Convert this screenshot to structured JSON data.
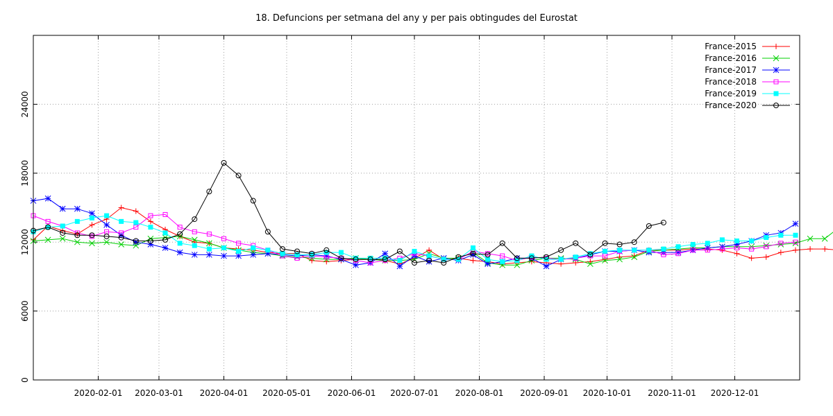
{
  "chart_data": {
    "type": "line",
    "title": "18. Defuncions per setmana del any y per pais obtingudes del Eurostat",
    "xlabel": "",
    "ylabel": "",
    "ylim": [
      0,
      30000
    ],
    "xlim": [
      "2020-01-01",
      "2021-01-01"
    ],
    "yticks": [
      0,
      6000,
      12000,
      18000,
      24000
    ],
    "xticks": [
      "2020-02-01",
      "2020-03-01",
      "2020-04-01",
      "2020-05-01",
      "2020-06-01",
      "2020-07-01",
      "2020-08-01",
      "2020-09-01",
      "2020-10-01",
      "2020-11-01",
      "2020-12-01"
    ],
    "grid": true,
    "legend_position": "top-right",
    "x_weekly_start": "2020-01-01",
    "series": [
      {
        "name": "France-2015",
        "color": "#ff0000",
        "marker": "plus",
        "values": [
          12200,
          13400,
          13000,
          12700,
          13500,
          14000,
          15000,
          14700,
          13800,
          13100,
          12500,
          12000,
          11900,
          11500,
          11400,
          11300,
          11100,
          11000,
          11000,
          10400,
          10300,
          10400,
          10500,
          10500,
          10400,
          10100,
          10600,
          11300,
          10500,
          10600,
          10400,
          10300,
          10100,
          10200,
          10300,
          10200,
          10100,
          10200,
          10300,
          10500,
          10700,
          10800,
          11300,
          11300,
          11300,
          11400,
          11400,
          11300,
          11000,
          10600,
          10700,
          11100,
          11300,
          11400,
          11400,
          11300,
          11900
        ]
      },
      {
        "name": "France-2016",
        "color": "#00d000",
        "marker": "cross",
        "values": [
          12100,
          12200,
          12300,
          12000,
          11900,
          12000,
          11800,
          11700,
          12300,
          12400,
          12500,
          12200,
          11900,
          11500,
          11300,
          11100,
          11000,
          10800,
          10700,
          10600,
          10500,
          10500,
          10600,
          10500,
          10400,
          10400,
          10500,
          11000,
          10600,
          10600,
          11100,
          10200,
          10000,
          10000,
          10400,
          10600,
          10600,
          10500,
          10100,
          10400,
          10500,
          10700,
          11200,
          11300,
          11400,
          11500,
          11500,
          11600,
          11600,
          11600,
          11700,
          11800,
          11900,
          12300,
          12300,
          13300,
          14600
        ]
      },
      {
        "name": "France-2017",
        "color": "#0000ff",
        "marker": "star",
        "values": [
          15600,
          15800,
          14900,
          14900,
          14500,
          13500,
          12600,
          12000,
          11800,
          11500,
          11100,
          10900,
          10900,
          10800,
          10800,
          10900,
          11000,
          10900,
          10800,
          10900,
          10800,
          10500,
          10000,
          10200,
          11000,
          9900,
          10800,
          10300,
          10600,
          10400,
          10900,
          10100,
          10300,
          10600,
          10600,
          9900,
          10500,
          10600,
          10900,
          11200,
          11200,
          11300,
          11100,
          11100,
          11100,
          11300,
          11500,
          11600,
          11800,
          12100,
          12600,
          12800,
          13600
        ]
      },
      {
        "name": "France-2018",
        "color": "#ff00ff",
        "marker": "square",
        "values": [
          14300,
          13800,
          13400,
          12800,
          12500,
          12900,
          12800,
          13300,
          14300,
          14400,
          13300,
          12900,
          12700,
          12300,
          11900,
          11700,
          11300,
          10800,
          10600,
          10800,
          10700,
          10600,
          10400,
          10200,
          10400,
          10600,
          11000,
          10800,
          10500,
          10500,
          11200,
          11000,
          10800,
          10400,
          10700,
          10600,
          10500,
          10600,
          10800,
          10800,
          11200,
          11300,
          11300,
          10900,
          11000,
          11300,
          11300,
          11400,
          11500,
          11400,
          11600,
          11900,
          12000
        ]
      },
      {
        "name": "France-2019",
        "color": "#00ffff",
        "marker": "filled-square",
        "values": [
          12900,
          13300,
          13400,
          13800,
          14100,
          14300,
          13800,
          13700,
          13300,
          12800,
          11900,
          11700,
          11400,
          11500,
          11200,
          11500,
          11300,
          11000,
          10900,
          10900,
          11100,
          11100,
          10600,
          10600,
          10600,
          10400,
          11200,
          10800,
          10500,
          10500,
          11500,
          10500,
          10300,
          10400,
          10800,
          10500,
          10500,
          10700,
          11000,
          11200,
          11300,
          11300,
          11300,
          11400,
          11600,
          11800,
          11900,
          12200,
          12100,
          12100,
          12400,
          12600,
          12600
        ]
      },
      {
        "name": "France-2020",
        "color": "#000000",
        "marker": "circle",
        "values": [
          13000,
          13300,
          12800,
          12600,
          12600,
          12500,
          12400,
          12100,
          12100,
          12200,
          12700,
          14000,
          16400,
          18900,
          17800,
          15600,
          12900,
          11400,
          11200,
          11000,
          11300,
          10600,
          10500,
          10500,
          10500,
          11200,
          10200,
          10400,
          10200,
          10700,
          11000,
          10900,
          11900,
          10600,
          10600,
          10700,
          11300,
          11900,
          10900,
          11900,
          11800,
          12000,
          13400,
          13700
        ]
      }
    ]
  }
}
